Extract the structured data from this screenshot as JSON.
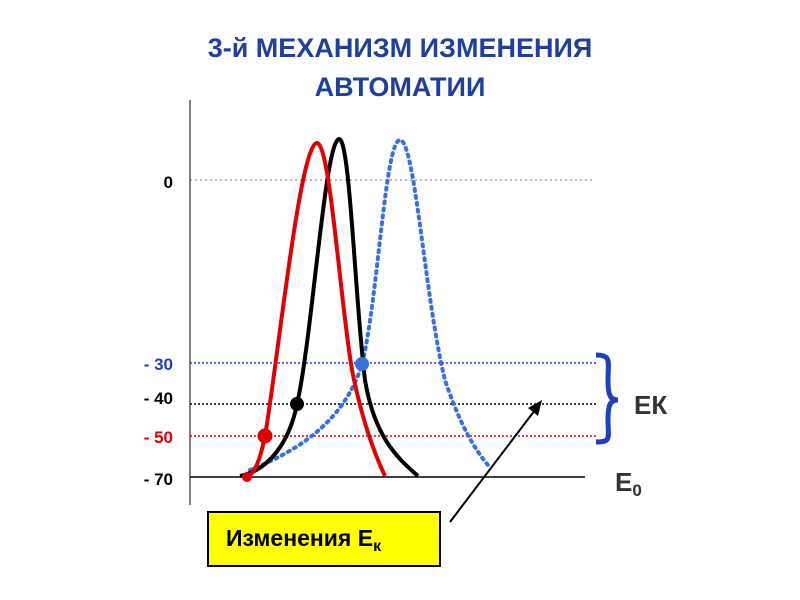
{
  "title": {
    "lines": [
      "3-й МЕХАНИЗМ ИЗМЕНЕНИЯ",
      "АВТОМАТИИ"
    ]
  },
  "levels": [
    "0",
    "- 30",
    "- 40",
    "- 50",
    "- 70"
  ],
  "brace_label": "EК",
  "baseline_label": {
    "main": "E",
    "sub": "0"
  },
  "callout": {
    "main": "Изменения  E",
    "sub": "к"
  }
}
